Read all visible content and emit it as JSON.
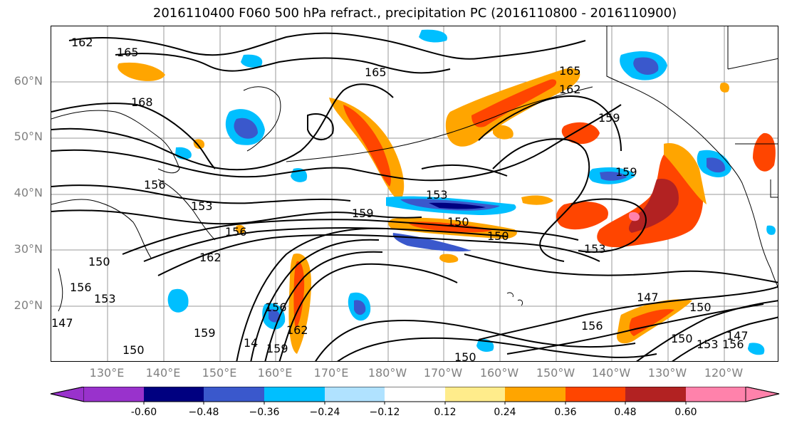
{
  "title": "2016110400 F060 500 hPa refract., precipitation PC (2016110800 - 2016110900)",
  "lat_labels": [
    "60°N",
    "50°N",
    "40°N",
    "30°N",
    "20°N"
  ],
  "lon_labels": [
    "130°E",
    "140°E",
    "150°E",
    "160°E",
    "170°E",
    "180°W",
    "170°W",
    "160°W",
    "150°W",
    "140°W",
    "130°W",
    "120°W"
  ],
  "colorbar": {
    "ticks": [
      "-0.60",
      "−0.48",
      "−0.36",
      "−0.24",
      "−0.12",
      "0.12",
      "0.24",
      "0.36",
      "0.48",
      "0.60"
    ],
    "colors": [
      "#9932cc",
      "#000080",
      "#3a58cc",
      "#00bfff",
      "#b0e2ff",
      "#ffffff",
      "#ffec8b",
      "#ffa500",
      "#ff4500",
      "#b22222",
      "#ff82ab"
    ]
  },
  "contour_labels": [
    "162",
    "165",
    "168",
    "165",
    "165",
    "162",
    "159",
    "159",
    "156",
    "153",
    "153",
    "159",
    "150",
    "150",
    "156",
    "153",
    "162",
    "150",
    "156",
    "153",
    "147",
    "150",
    "156",
    "150",
    "147",
    "153",
    "156",
    "159",
    "159",
    "162",
    "156",
    "147",
    "150",
    "150",
    "14"
  ],
  "map_colors": {
    "orange": "#ffa500",
    "red": "#ff4500",
    "darkred": "#b22222",
    "yellow": "#ffec8b",
    "cyan": "#00bfff",
    "blue": "#3a58cc",
    "navy": "#000080",
    "pink": "#ff82ab",
    "grid": "#888888"
  }
}
